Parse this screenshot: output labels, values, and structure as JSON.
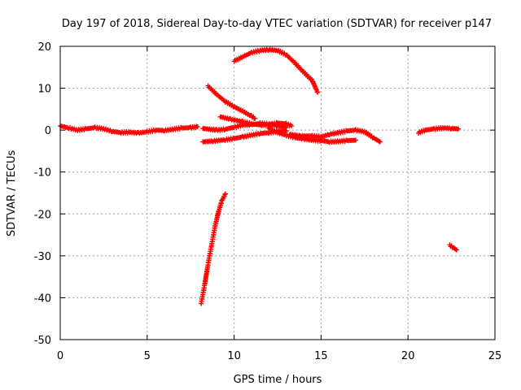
{
  "chart_data": {
    "type": "scatter",
    "title": "Day 197 of 2018, Sidereal Day-to-day VTEC variation (SDTVAR) for receiver p147",
    "xlabel": "GPS time / hours",
    "ylabel": "SDTVAR / TECUs",
    "xlim": [
      0,
      25
    ],
    "ylim": [
      -50,
      20
    ],
    "xticks": [
      0,
      5,
      10,
      15,
      20,
      25
    ],
    "yticks": [
      -50,
      -40,
      -30,
      -20,
      -10,
      0,
      10,
      20
    ],
    "grid": true,
    "marker": "plus",
    "color": "#ff0000",
    "segments": [
      {
        "points": [
          [
            0,
            1.0
          ],
          [
            0.5,
            0.5
          ],
          [
            1,
            0
          ],
          [
            1.5,
            0.3
          ],
          [
            2,
            0.6
          ],
          [
            2.5,
            0.3
          ],
          [
            3,
            -0.3
          ],
          [
            3.5,
            -0.6
          ],
          [
            4,
            -0.5
          ],
          [
            4.5,
            -0.7
          ],
          [
            5,
            -0.4
          ],
          [
            5.5,
            0
          ],
          [
            6,
            -0.1
          ],
          [
            6.5,
            0.2
          ],
          [
            7,
            0.5
          ],
          [
            7.5,
            0.6
          ],
          [
            7.9,
            0.8
          ]
        ]
      },
      {
        "points": [
          [
            8.2,
            0.4
          ],
          [
            8.6,
            0.2
          ],
          [
            9,
            0
          ],
          [
            9.5,
            0.2
          ],
          [
            10,
            0.7
          ],
          [
            10.5,
            1.2
          ],
          [
            11,
            1.3
          ],
          [
            11.5,
            1.6
          ],
          [
            12,
            1.4
          ],
          [
            12.5,
            1.0
          ],
          [
            13,
            0.6
          ]
        ]
      },
      {
        "points": [
          [
            8.2,
            -2.8
          ],
          [
            8.8,
            -2.6
          ],
          [
            9.5,
            -2.3
          ],
          [
            10,
            -2.0
          ],
          [
            10.5,
            -1.6
          ],
          [
            11,
            -1.2
          ],
          [
            11.5,
            -0.8
          ],
          [
            12,
            -0.6
          ],
          [
            12.5,
            -0.3
          ],
          [
            13,
            -0.2
          ]
        ]
      },
      {
        "points": [
          [
            9.2,
            3.2
          ],
          [
            9.8,
            2.6
          ],
          [
            10.5,
            2.0
          ],
          [
            11,
            1.5
          ],
          [
            11.6,
            1.2
          ],
          [
            12,
            1.3
          ],
          [
            12.5,
            1.7
          ],
          [
            13,
            1.5
          ],
          [
            13.3,
            1.0
          ]
        ]
      },
      {
        "points": [
          [
            12,
            0.4
          ],
          [
            12.5,
            -0.6
          ],
          [
            13,
            -1.2
          ],
          [
            13.5,
            -1.8
          ],
          [
            14,
            -2.1
          ],
          [
            14.5,
            -2.4
          ],
          [
            15,
            -2.5
          ],
          [
            15.5,
            -2.8
          ],
          [
            16,
            -2.7
          ],
          [
            16.5,
            -2.5
          ],
          [
            17,
            -2.4
          ]
        ]
      },
      {
        "points": [
          [
            13.2,
            -1.0
          ],
          [
            13.8,
            -1.4
          ],
          [
            14.5,
            -1.4
          ],
          [
            15,
            -1.6
          ],
          [
            15.5,
            -1.0
          ],
          [
            16,
            -0.6
          ],
          [
            16.5,
            -0.2
          ],
          [
            17,
            0.0
          ],
          [
            17.5,
            -0.4
          ],
          [
            18,
            -1.8
          ],
          [
            18.4,
            -2.8
          ]
        ]
      },
      {
        "points": [
          [
            8.5,
            10.5
          ],
          [
            9,
            8.5
          ],
          [
            9.5,
            6.8
          ],
          [
            10,
            5.6
          ],
          [
            10.5,
            4.5
          ],
          [
            11,
            3.3
          ],
          [
            11.2,
            2.8
          ]
        ]
      },
      {
        "points": [
          [
            10,
            16.5
          ],
          [
            10.5,
            17.5
          ],
          [
            11,
            18.5
          ],
          [
            11.5,
            19.0
          ],
          [
            12,
            19.2
          ],
          [
            12.5,
            19.0
          ],
          [
            13,
            18.0
          ],
          [
            13.5,
            16.0
          ],
          [
            14,
            13.8
          ],
          [
            14.5,
            11.8
          ],
          [
            14.8,
            9.0
          ]
        ]
      },
      {
        "points": [
          [
            8.1,
            -41.5
          ],
          [
            8.3,
            -37
          ],
          [
            8.5,
            -32
          ],
          [
            8.7,
            -27.5
          ],
          [
            8.9,
            -23
          ],
          [
            9.1,
            -19.5
          ],
          [
            9.3,
            -16.8
          ],
          [
            9.5,
            -15.2
          ]
        ]
      },
      {
        "points": [
          [
            20.6,
            -0.6
          ],
          [
            21,
            0
          ],
          [
            21.5,
            0.3
          ],
          [
            22,
            0.5
          ],
          [
            22.5,
            0.4
          ],
          [
            22.9,
            0.3
          ]
        ]
      },
      {
        "points": [
          [
            22.4,
            -27.5
          ],
          [
            22.6,
            -28
          ],
          [
            22.8,
            -28.6
          ]
        ]
      }
    ]
  }
}
